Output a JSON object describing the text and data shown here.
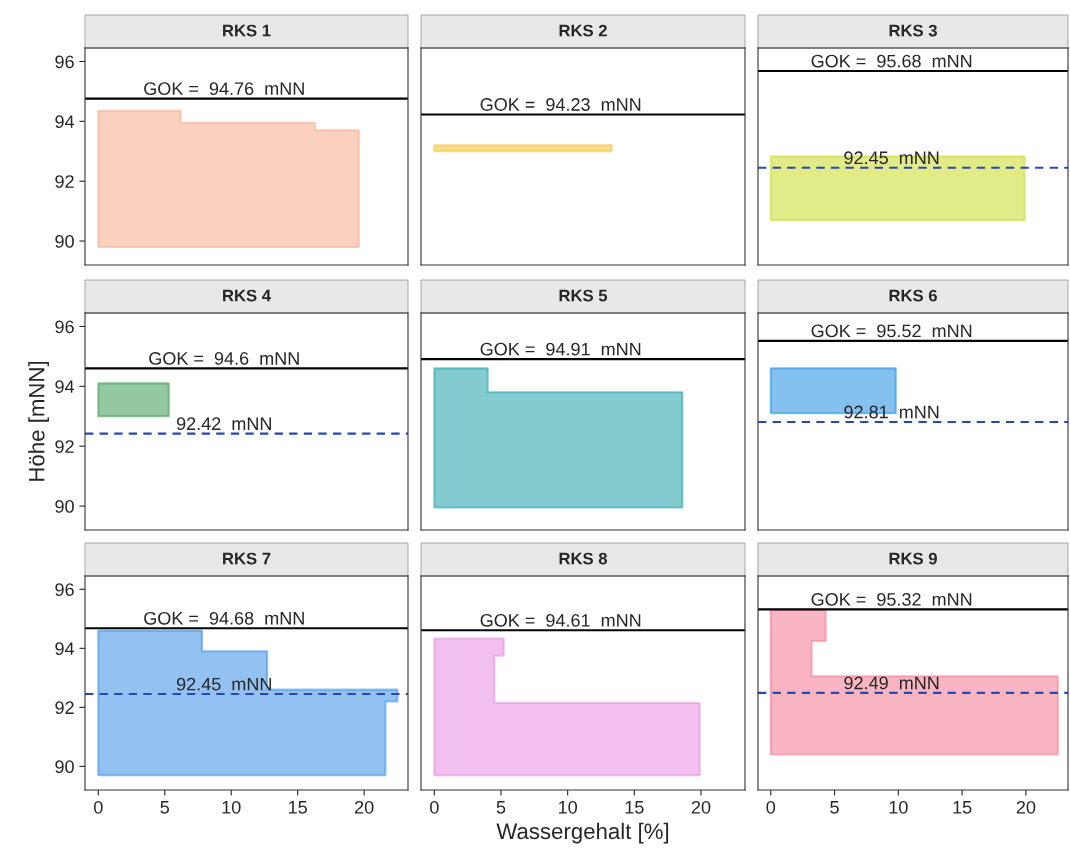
{
  "chart_data": [
    {
      "type": "area",
      "orientation": "horizontal",
      "title": "RKS 1",
      "x": [
        94.35,
        93.95,
        93.7,
        89.8
      ],
      "values": [
        6.2,
        16.3,
        19.6,
        19.6
      ],
      "color": "#f7a98a",
      "xlim": [
        -1,
        23.3
      ],
      "ylim": [
        89.2,
        96.45
      ],
      "xticks": [
        0,
        5,
        10,
        15,
        20
      ],
      "yticks": [
        90,
        92,
        94,
        96
      ],
      "tick_labels": "y",
      "grid": false,
      "legend": false,
      "ref_lines": [
        {
          "axis": "y",
          "value": 94.76,
          "label": "GOK =  94.76  mNN",
          "color": "#000000",
          "line_style": "solid"
        }
      ]
    },
    {
      "type": "area",
      "orientation": "horizontal",
      "title": "RKS 2",
      "x": [
        93.2,
        93.0
      ],
      "values": [
        13.3,
        13.3
      ],
      "color": "#f2c230",
      "xlim": [
        -1,
        23.3
      ],
      "ylim": [
        89.2,
        96.45
      ],
      "xticks": [
        0,
        5,
        10,
        15,
        20
      ],
      "yticks": [
        90,
        92,
        94,
        96
      ],
      "tick_labels": false,
      "grid": false,
      "legend": false,
      "ref_lines": [
        {
          "axis": "y",
          "value": 94.23,
          "label": "GOK =  94.23  mNN",
          "color": "#000000",
          "line_style": "solid"
        }
      ]
    },
    {
      "type": "area",
      "orientation": "horizontal",
      "title": "RKS 3",
      "x": [
        92.83,
        90.7
      ],
      "values": [
        19.9,
        19.9
      ],
      "color": "#c8dc28",
      "xlim": [
        -1,
        23.3
      ],
      "ylim": [
        89.2,
        96.45
      ],
      "xticks": [
        0,
        5,
        10,
        15,
        20
      ],
      "yticks": [
        90,
        92,
        94,
        96
      ],
      "tick_labels": false,
      "grid": false,
      "legend": false,
      "ref_lines": [
        {
          "axis": "y",
          "value": 95.68,
          "label": "GOK =  95.68  mNN",
          "color": "#000000",
          "line_style": "solid"
        },
        {
          "axis": "y",
          "value": 92.45,
          "label": "92.45  mNN",
          "color": "#2848b0",
          "line_style": "dashed"
        }
      ]
    },
    {
      "type": "area",
      "orientation": "horizontal",
      "title": "RKS 4",
      "x": [
        94.1,
        93.0
      ],
      "values": [
        5.3,
        5.3
      ],
      "color": "#3c9a50",
      "xlim": [
        -1,
        23.3
      ],
      "ylim": [
        89.2,
        96.45
      ],
      "xticks": [
        0,
        5,
        10,
        15,
        20
      ],
      "yticks": [
        90,
        92,
        94,
        96
      ],
      "tick_labels": "y",
      "ylabel": "Höhe [mNN]",
      "grid": false,
      "legend": false,
      "ref_lines": [
        {
          "axis": "y",
          "value": 94.6,
          "label": "GOK =  94.6  mNN",
          "color": "#000000",
          "line_style": "solid"
        },
        {
          "axis": "y",
          "value": 92.42,
          "label": "92.42  mNN",
          "color": "#2848b0",
          "line_style": "dashed"
        }
      ]
    },
    {
      "type": "area",
      "orientation": "horizontal",
      "title": "RKS 5",
      "x": [
        94.6,
        93.8,
        89.95
      ],
      "values": [
        4.0,
        18.6,
        18.6
      ],
      "color": "#1fa0a8",
      "xlim": [
        -1,
        23.3
      ],
      "ylim": [
        89.2,
        96.45
      ],
      "xticks": [
        0,
        5,
        10,
        15,
        20
      ],
      "yticks": [
        90,
        92,
        94,
        96
      ],
      "tick_labels": false,
      "grid": false,
      "legend": false,
      "ref_lines": [
        {
          "axis": "y",
          "value": 94.91,
          "label": "GOK =  94.91  mNN",
          "color": "#000000",
          "line_style": "solid"
        }
      ]
    },
    {
      "type": "area",
      "orientation": "horizontal",
      "title": "RKS 6",
      "x": [
        94.6,
        93.1
      ],
      "values": [
        9.8,
        9.8
      ],
      "color": "#1f8ee0",
      "xlim": [
        -1,
        23.3
      ],
      "ylim": [
        89.2,
        96.45
      ],
      "xticks": [
        0,
        5,
        10,
        15,
        20
      ],
      "yticks": [
        90,
        92,
        94,
        96
      ],
      "tick_labels": false,
      "grid": false,
      "legend": false,
      "ref_lines": [
        {
          "axis": "y",
          "value": 95.52,
          "label": "GOK =  95.52  mNN",
          "color": "#000000",
          "line_style": "solid"
        },
        {
          "axis": "y",
          "value": 92.81,
          "label": "92.81  mNN",
          "color": "#2848b0",
          "line_style": "dashed"
        }
      ]
    },
    {
      "type": "area",
      "orientation": "horizontal",
      "title": "RKS 7",
      "x": [
        94.6,
        93.9,
        92.6,
        92.2,
        89.7
      ],
      "values": [
        7.8,
        12.7,
        22.5,
        21.6,
        21.6
      ],
      "color": "#3b8ee6",
      "xlim": [
        -1,
        23.3
      ],
      "ylim": [
        89.2,
        96.45
      ],
      "xticks": [
        0,
        5,
        10,
        15,
        20
      ],
      "yticks": [
        90,
        92,
        94,
        96
      ],
      "grid": false,
      "legend": false,
      "ref_lines": [
        {
          "axis": "y",
          "value": 94.68,
          "label": "GOK =  94.68  mNN",
          "color": "#000000",
          "line_style": "solid"
        },
        {
          "axis": "y",
          "value": 92.45,
          "label": "92.45  mNN",
          "color": "#2848b0",
          "line_style": "dashed"
        }
      ]
    },
    {
      "type": "area",
      "orientation": "horizontal",
      "title": "RKS 8",
      "x": [
        94.33,
        93.75,
        92.15,
        89.7
      ],
      "values": [
        5.2,
        4.5,
        19.9,
        19.9
      ],
      "color": "#e88ae0",
      "xlim": [
        -1,
        23.3
      ],
      "ylim": [
        89.2,
        96.45
      ],
      "xticks": [
        0,
        5,
        10,
        15,
        20
      ],
      "yticks": [
        90,
        92,
        94,
        96
      ],
      "tick_labels": "x",
      "xlabel": "Wassergehalt [%]",
      "grid": false,
      "legend": false,
      "ref_lines": [
        {
          "axis": "y",
          "value": 94.61,
          "label": "GOK =  94.61  mNN",
          "color": "#000000",
          "line_style": "solid"
        }
      ]
    },
    {
      "type": "area",
      "orientation": "horizontal",
      "title": "RKS 9",
      "x": [
        95.3,
        94.25,
        93.05,
        90.4
      ],
      "values": [
        4.3,
        3.2,
        22.5,
        22.5
      ],
      "color": "#f47890",
      "xlim": [
        -1,
        23.3
      ],
      "ylim": [
        89.2,
        96.45
      ],
      "xticks": [
        0,
        5,
        10,
        15,
        20
      ],
      "yticks": [
        90,
        92,
        94,
        96
      ],
      "tick_labels": "x",
      "grid": false,
      "legend": false,
      "ref_lines": [
        {
          "axis": "y",
          "value": 95.32,
          "label": "GOK =  95.32  mNN",
          "color": "#000000",
          "line_style": "solid"
        },
        {
          "axis": "y",
          "value": 92.49,
          "label": "92.49  mNN",
          "color": "#2848b0",
          "line_style": "dashed"
        }
      ]
    }
  ]
}
